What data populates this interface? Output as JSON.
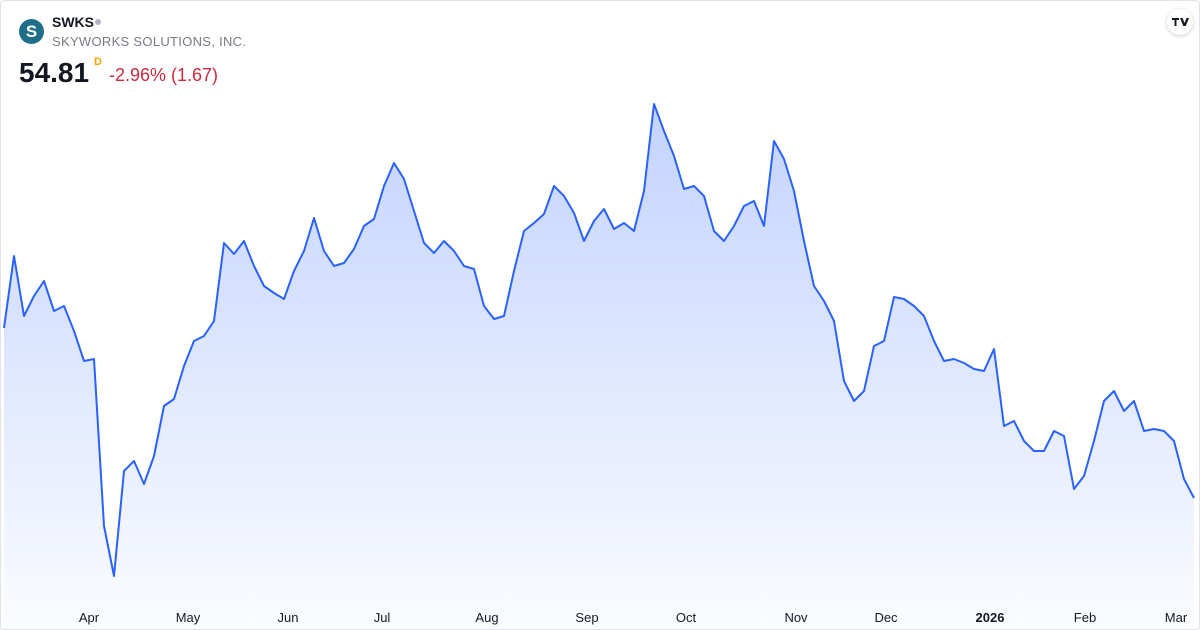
{
  "header": {
    "logo": "S",
    "symbol": "SWKS",
    "name": "SKYWORKS SOLUTIONS, INC.",
    "price": "54.81",
    "interval": "D",
    "change": "-2.96% (1.67)"
  },
  "chart_data": {
    "type": "line",
    "color": "#2962ff",
    "fill": true,
    "values": [
      66.71,
      71.75,
      67.55,
      68.95,
      70.0,
      67.9,
      68.25,
      66.5,
      64.4,
      64.54,
      52.85,
      49.35,
      56.7,
      57.4,
      55.79,
      57.75,
      61.25,
      61.74,
      64.05,
      65.8,
      66.15,
      67.2,
      72.66,
      71.89,
      72.8,
      71.05,
      69.65,
      69.16,
      68.74,
      70.7,
      72.1,
      74.41,
      72.1,
      71.05,
      71.26,
      72.24,
      73.85,
      74.34,
      76.65,
      78.26,
      77.14,
      74.9,
      72.66,
      71.96,
      72.8,
      72.1,
      71.05,
      70.84,
      68.25,
      67.34,
      67.55,
      70.7,
      73.5,
      74.06,
      74.69,
      76.65,
      75.95,
      74.76,
      72.8,
      74.2,
      75.04,
      73.64,
      74.06,
      73.5,
      76.3,
      82.39,
      80.5,
      78.75,
      76.44,
      76.65,
      75.95,
      73.5,
      72.8,
      73.85,
      75.25,
      75.6,
      73.85,
      79.8,
      78.54,
      76.3,
      72.8,
      69.65,
      68.6,
      67.2,
      63.0,
      61.6,
      62.3,
      65.45,
      65.8,
      68.88,
      68.74,
      68.25,
      67.55,
      65.8,
      64.4,
      64.54,
      64.26,
      63.84,
      63.7,
      65.24,
      59.85,
      60.2,
      58.8,
      58.1,
      58.1,
      59.5,
      59.15,
      55.44,
      56.35,
      58.8,
      61.6,
      62.3,
      60.9,
      61.6,
      59.5,
      59.64,
      59.5,
      58.8,
      56.14,
      54.81
    ],
    "xlim": [
      0,
      119
    ],
    "ylim": [
      47.6,
      85.4
    ],
    "xticks": [
      {
        "value": 8.5,
        "label": "Apr"
      },
      {
        "value": 18.4,
        "label": "May"
      },
      {
        "value": 28.4,
        "label": "Jun"
      },
      {
        "value": 37.8,
        "label": "Jul"
      },
      {
        "value": 48.3,
        "label": "Aug"
      },
      {
        "value": 58.3,
        "label": "Sep"
      },
      {
        "value": 68.2,
        "label": "Oct"
      },
      {
        "value": 79.2,
        "label": "Nov"
      },
      {
        "value": 88.2,
        "label": "Dec"
      },
      {
        "value": 98.6,
        "label": "2026",
        "bold": true
      },
      {
        "value": 108.1,
        "label": "Feb"
      },
      {
        "value": 117.2,
        "label": "Mar"
      }
    ]
  }
}
